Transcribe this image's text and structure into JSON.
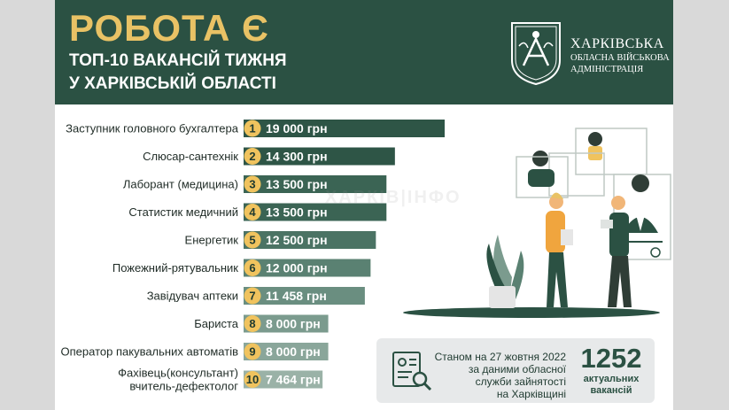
{
  "header": {
    "title": "РОБОТА Є",
    "subtitle_line1": "ТОП-10 ВАКАНСІЙ ТИЖНЯ",
    "subtitle_line2": "У ХАРКІВСЬКІЙ ОБЛАСТІ",
    "org_line1": "ХАРКІВСЬКА",
    "org_line2": "ОБЛАСНА ВІЙСЬКОВА",
    "org_line3": "АДМІНІСТРАЦІЯ"
  },
  "colors": {
    "background_green": "#2b5143",
    "title_gold": "#e9c265",
    "badge_gold": "#f0c35e",
    "bar_colors": [
      "#2e5546",
      "#2e5546",
      "#3b6454",
      "#3b6454",
      "#4b7364",
      "#5a8172",
      "#6a8e80",
      "#7b9b8e",
      "#8aa69a",
      "#9ab2a7"
    ]
  },
  "chart_data": {
    "type": "bar",
    "orientation": "horizontal",
    "categories": [
      "Заступник головного бухгалтера",
      "Слюсар-сантехнік",
      "Лаборант (медицина)",
      "Статистик медичний",
      "Енергетик",
      "Пожежний-рятувальник",
      "Завідувач аптеки",
      "Бариста",
      "Оператор пакувальних автоматів",
      [
        "Фахівець(консультант)",
        "вчитель-дефектолог"
      ]
    ],
    "ranks": [
      "1",
      "2",
      "3",
      "4",
      "5",
      "6",
      "7",
      "8",
      "9",
      "10"
    ],
    "values": [
      19000,
      14300,
      13500,
      13500,
      12500,
      12000,
      11458,
      8000,
      8000,
      7464
    ],
    "value_labels": [
      "19 000 грн",
      "14 300 грн",
      "13 500 грн",
      "13 500 грн",
      "12 500 грн",
      "12 000 грн",
      "11 458 грн",
      "8 000 грн",
      "8 000 грн",
      "7 464 грн"
    ],
    "unit": "грн"
  },
  "stats": {
    "line1": "Станом на 27 жовтня 2022",
    "line2": "за даними обласної",
    "line3": "служби зайнятості",
    "line4": "на Харківщині",
    "count": "1252",
    "count_label1": "актуальних",
    "count_label2": "вакансій"
  },
  "watermark": "ХАРКІВ|ІНФО"
}
